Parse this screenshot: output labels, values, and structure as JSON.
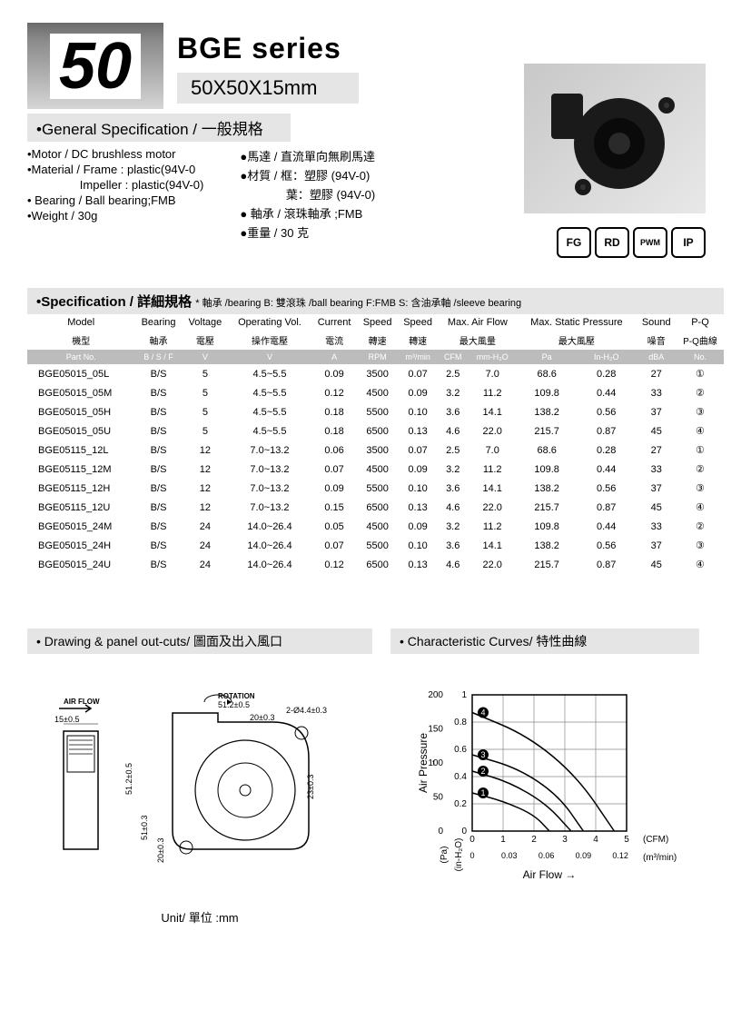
{
  "header": {
    "number": "50",
    "series": "BGE series",
    "dimensions": "50X50X15mm"
  },
  "general": {
    "title": "•General Specification  /  一般規格",
    "left": [
      "•Motor  / DC brushless motor",
      "•Material  / Frame : plastic(94V-0",
      "                Impeller : plastic(94V-0)",
      "• Bearing  / Ball bearing;FMB",
      "•Weight  / 30g"
    ],
    "right": [
      "●馬達  / 直流單向無刷馬達",
      "●材質  / 框：塑膠 (94V-0)",
      "              葉：塑膠 (94V-0)",
      "● 軸承  / 滾珠軸承 ;FMB",
      "●重量  / 30 克"
    ]
  },
  "badges": [
    "FG",
    "RD",
    "PWM",
    "IP"
  ],
  "spec_header": {
    "title": "•Specification / 詳細規格",
    "note": "* 軸承 /bearing B: 雙滾珠 /ball bearing F:FMB S: 含油承軸 /sleeve bearing"
  },
  "table": {
    "head1": [
      "Model",
      "Bearing",
      "Voltage",
      "Operating Vol.",
      "Current",
      "Speed",
      "Speed",
      "Max. Air Flow",
      "",
      "Max. Static Pressure",
      "",
      "Sound",
      "P-Q"
    ],
    "head2": [
      "機型",
      "軸承",
      "電壓",
      "操作電壓",
      "電流",
      "轉速",
      "轉速",
      "最大風量",
      "",
      "最大風壓",
      "",
      "噪音",
      "P-Q曲線"
    ],
    "units": [
      "Part No.",
      "B / S / F",
      "V",
      "V",
      "A",
      "RPM",
      "m³/min",
      "CFM",
      "mm-H₂O",
      "Pa",
      "In-H₂O",
      "dBA",
      "No."
    ],
    "rows": [
      [
        "BGE05015_05L",
        "B/S",
        "5",
        "4.5~5.5",
        "0.09",
        "3500",
        "0.07",
        "2.5",
        "7.0",
        "68.6",
        "0.28",
        "27",
        "①"
      ],
      [
        "BGE05015_05M",
        "B/S",
        "5",
        "4.5~5.5",
        "0.12",
        "4500",
        "0.09",
        "3.2",
        "11.2",
        "109.8",
        "0.44",
        "33",
        "②"
      ],
      [
        "BGE05015_05H",
        "B/S",
        "5",
        "4.5~5.5",
        "0.18",
        "5500",
        "0.10",
        "3.6",
        "14.1",
        "138.2",
        "0.56",
        "37",
        "③"
      ],
      [
        "BGE05015_05U",
        "B/S",
        "5",
        "4.5~5.5",
        "0.18",
        "6500",
        "0.13",
        "4.6",
        "22.0",
        "215.7",
        "0.87",
        "45",
        "④"
      ],
      [
        "BGE05115_12L",
        "B/S",
        "12",
        "7.0~13.2",
        "0.06",
        "3500",
        "0.07",
        "2.5",
        "7.0",
        "68.6",
        "0.28",
        "27",
        "①"
      ],
      [
        "BGE05115_12M",
        "B/S",
        "12",
        "7.0~13.2",
        "0.07",
        "4500",
        "0.09",
        "3.2",
        "11.2",
        "109.8",
        "0.44",
        "33",
        "②"
      ],
      [
        "BGE05115_12H",
        "B/S",
        "12",
        "7.0~13.2",
        "0.09",
        "5500",
        "0.10",
        "3.6",
        "14.1",
        "138.2",
        "0.56",
        "37",
        "③"
      ],
      [
        "BGE05115_12U",
        "B/S",
        "12",
        "7.0~13.2",
        "0.15",
        "6500",
        "0.13",
        "4.6",
        "22.0",
        "215.7",
        "0.87",
        "45",
        "④"
      ],
      [
        "BGE05015_24M",
        "B/S",
        "24",
        "14.0~26.4",
        "0.05",
        "4500",
        "0.09",
        "3.2",
        "11.2",
        "109.8",
        "0.44",
        "33",
        "②"
      ],
      [
        "BGE05015_24H",
        "B/S",
        "24",
        "14.0~26.4",
        "0.07",
        "5500",
        "0.10",
        "3.6",
        "14.1",
        "138.2",
        "0.56",
        "37",
        "③"
      ],
      [
        "BGE05015_24U",
        "B/S",
        "24",
        "14.0~26.4",
        "0.12",
        "6500",
        "0.13",
        "4.6",
        "22.0",
        "215.7",
        "0.87",
        "45",
        "④"
      ]
    ]
  },
  "sections": {
    "drawing_title": "• Drawing & panel out-cuts/ 圖面及出入風口",
    "curves_title": "• Characteristic Curves/ 特性曲線",
    "unit_label": "Unit/ 單位 :mm"
  },
  "drawing": {
    "airflow": "AIR FLOW",
    "rotation": "ROTATION",
    "dims": [
      "15±0.5",
      "51.2±0.5",
      "20±0.3",
      "2-Ø4.4±0.3",
      "51.2±0.5",
      "51±0.3",
      "20±0.3",
      "23±0.3"
    ]
  },
  "chart": {
    "y_label": "Air Pressure",
    "x_label": "Air Flow",
    "y_left_ticks": [
      "200",
      "150",
      "100",
      "50",
      "0"
    ],
    "y_right_ticks": [
      "1",
      "0.8",
      "0.6",
      "0.4",
      "0.2",
      "0"
    ],
    "x_ticks_cfm": [
      "0",
      "1",
      "2",
      "3",
      "4",
      "5"
    ],
    "x_ticks_m3": [
      "0",
      "0.03",
      "0.06",
      "0.09",
      "0.12"
    ],
    "x_unit_cfm": "(CFM)",
    "x_unit_m3": "(m³/min)",
    "y_unit_pa": "(Pa)",
    "y_unit_in": "(in-H₂O)",
    "grid_color": "#888888",
    "curve_color": "#000000",
    "curves": [
      {
        "label": "①",
        "points": [
          [
            0,
            0.28
          ],
          [
            1,
            0.22
          ],
          [
            2,
            0.12
          ],
          [
            2.5,
            0
          ]
        ]
      },
      {
        "label": "②",
        "points": [
          [
            0,
            0.44
          ],
          [
            1.2,
            0.36
          ],
          [
            2.4,
            0.2
          ],
          [
            3.2,
            0
          ]
        ]
      },
      {
        "label": "③",
        "points": [
          [
            0,
            0.56
          ],
          [
            1.5,
            0.46
          ],
          [
            2.8,
            0.26
          ],
          [
            3.6,
            0
          ]
        ]
      },
      {
        "label": "④",
        "points": [
          [
            0,
            0.87
          ],
          [
            1.8,
            0.7
          ],
          [
            3.4,
            0.4
          ],
          [
            4.6,
            0
          ]
        ]
      }
    ],
    "xlim": [
      0,
      5
    ],
    "ylim": [
      0,
      1
    ]
  }
}
